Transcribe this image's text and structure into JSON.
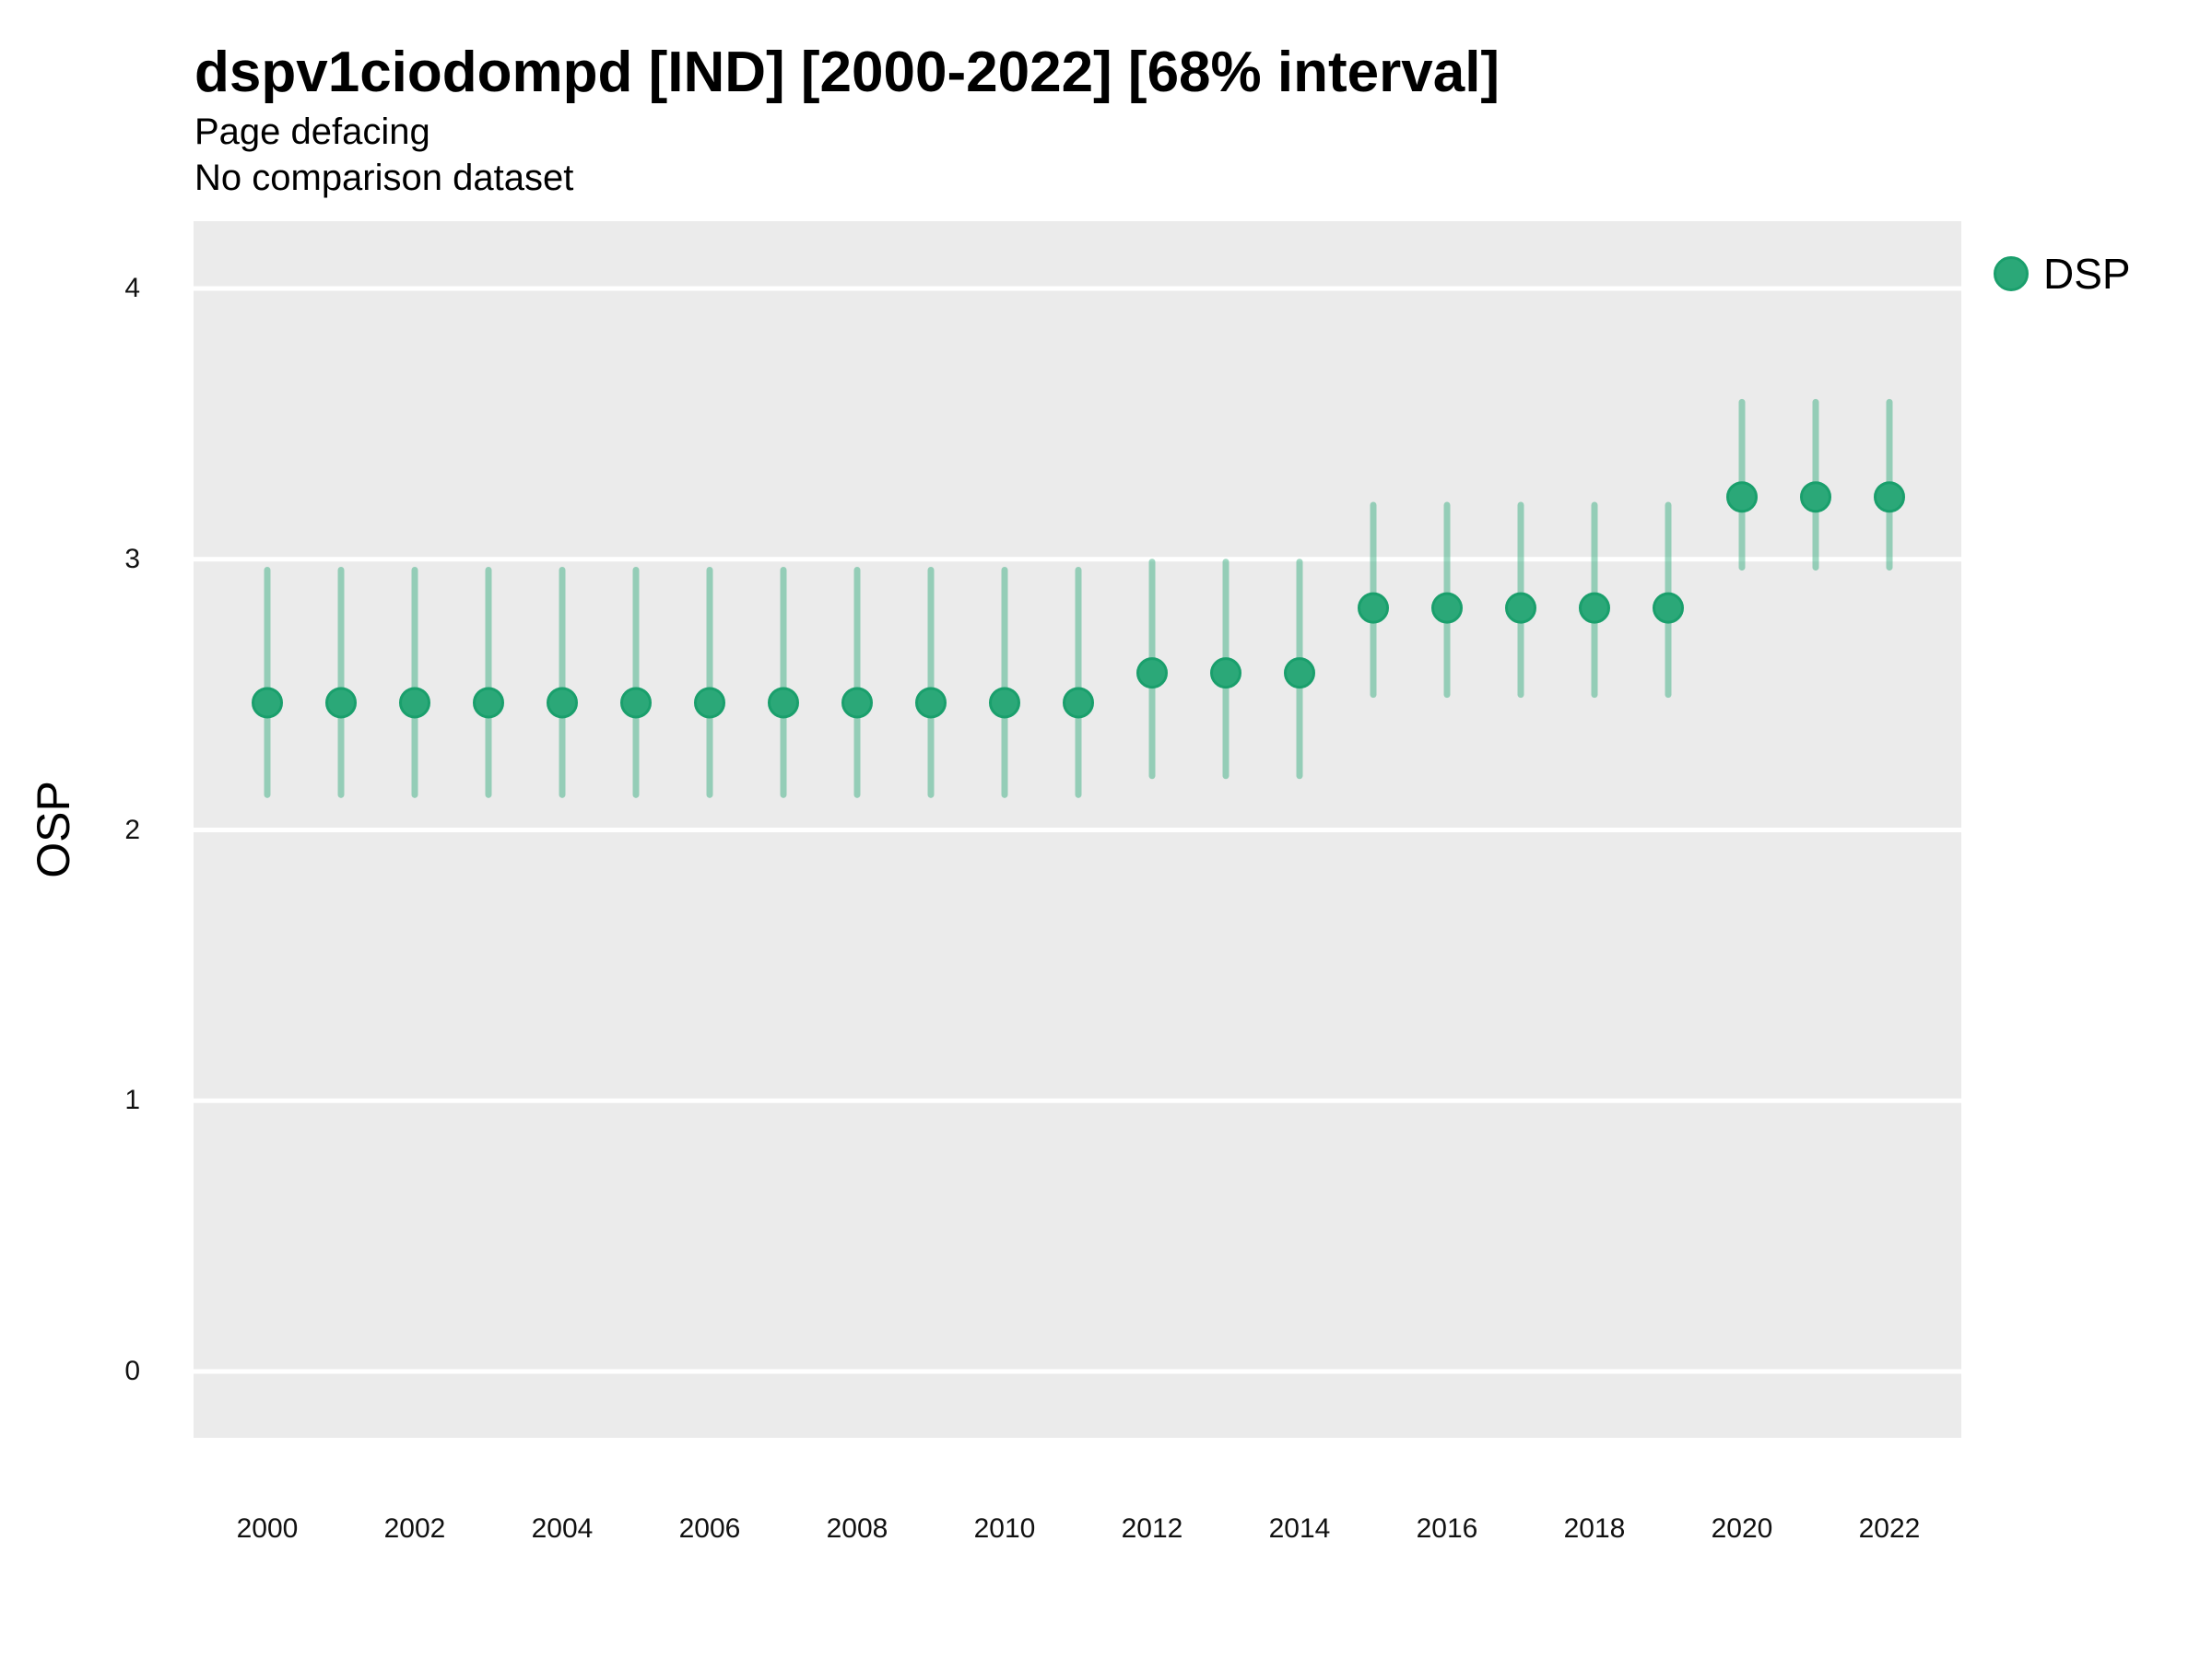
{
  "header": {
    "title": "dspv1ciodompd [IND] [2000-2022] [68% interval]",
    "subtitle_line1": "Page defacing",
    "subtitle_line2": "No comparison dataset"
  },
  "y_axis": {
    "label": "OSP",
    "ticks": [
      {
        "value": 0,
        "label": "0"
      },
      {
        "value": 1,
        "label": "1"
      },
      {
        "value": 2,
        "label": "2"
      },
      {
        "value": 3,
        "label": "3"
      },
      {
        "value": 4,
        "label": "4"
      }
    ]
  },
  "x_axis": {
    "ticks": [
      {
        "year": 2000,
        "label": "2000"
      },
      {
        "year": 2002,
        "label": "2002"
      },
      {
        "year": 2004,
        "label": "2004"
      },
      {
        "year": 2006,
        "label": "2006"
      },
      {
        "year": 2008,
        "label": "2008"
      },
      {
        "year": 2010,
        "label": "2010"
      },
      {
        "year": 2012,
        "label": "2012"
      },
      {
        "year": 2014,
        "label": "2014"
      },
      {
        "year": 2016,
        "label": "2016"
      },
      {
        "year": 2018,
        "label": "2018"
      },
      {
        "year": 2020,
        "label": "2020"
      },
      {
        "year": 2022,
        "label": "2022"
      }
    ]
  },
  "legend": {
    "items": [
      {
        "label": "DSP",
        "color": "#2BA878"
      }
    ]
  },
  "colors": {
    "point_fill": "#2BA878",
    "point_border": "#1A9F6C",
    "interval_line": "rgba(43,168,120,0.45)",
    "panel_background": "#EBEBEB",
    "gridline": "#FFFFFF",
    "text": "#000000"
  },
  "chart_data": {
    "type": "scatter",
    "subtype": "pointrange",
    "title": "dspv1ciodompd [IND] [2000-2022] [68% interval]",
    "subtitle": "Page defacing",
    "comparison_note": "No comparison dataset",
    "interval": "68%",
    "xlabel": "",
    "ylabel": "OSP",
    "ylim": [
      -0.25,
      4.25
    ],
    "xlim": [
      1999,
      2023
    ],
    "grid": "horizontal-major-only",
    "legend_position": "right-top",
    "series": [
      {
        "name": "DSP",
        "points": [
          {
            "year": 2000,
            "value": 2.47,
            "low": 2.13,
            "high": 2.96
          },
          {
            "year": 2001,
            "value": 2.47,
            "low": 2.13,
            "high": 2.96
          },
          {
            "year": 2002,
            "value": 2.47,
            "low": 2.13,
            "high": 2.96
          },
          {
            "year": 2003,
            "value": 2.47,
            "low": 2.13,
            "high": 2.96
          },
          {
            "year": 2004,
            "value": 2.47,
            "low": 2.13,
            "high": 2.96
          },
          {
            "year": 2005,
            "value": 2.47,
            "low": 2.13,
            "high": 2.96
          },
          {
            "year": 2006,
            "value": 2.47,
            "low": 2.13,
            "high": 2.96
          },
          {
            "year": 2007,
            "value": 2.47,
            "low": 2.13,
            "high": 2.96
          },
          {
            "year": 2008,
            "value": 2.47,
            "low": 2.13,
            "high": 2.96
          },
          {
            "year": 2009,
            "value": 2.47,
            "low": 2.13,
            "high": 2.96
          },
          {
            "year": 2010,
            "value": 2.47,
            "low": 2.13,
            "high": 2.96
          },
          {
            "year": 2011,
            "value": 2.47,
            "low": 2.13,
            "high": 2.96
          },
          {
            "year": 2012,
            "value": 2.58,
            "low": 2.2,
            "high": 2.99
          },
          {
            "year": 2013,
            "value": 2.58,
            "low": 2.2,
            "high": 2.99
          },
          {
            "year": 2014,
            "value": 2.58,
            "low": 2.2,
            "high": 2.99
          },
          {
            "year": 2015,
            "value": 2.82,
            "low": 2.5,
            "high": 3.2
          },
          {
            "year": 2016,
            "value": 2.82,
            "low": 2.5,
            "high": 3.2
          },
          {
            "year": 2017,
            "value": 2.82,
            "low": 2.5,
            "high": 3.2
          },
          {
            "year": 2018,
            "value": 2.82,
            "low": 2.5,
            "high": 3.2
          },
          {
            "year": 2019,
            "value": 2.82,
            "low": 2.5,
            "high": 3.2
          },
          {
            "year": 2020,
            "value": 3.23,
            "low": 2.97,
            "high": 3.58
          },
          {
            "year": 2021,
            "value": 3.23,
            "low": 2.97,
            "high": 3.58
          },
          {
            "year": 2022,
            "value": 3.23,
            "low": 2.97,
            "high": 3.58
          }
        ]
      }
    ]
  }
}
